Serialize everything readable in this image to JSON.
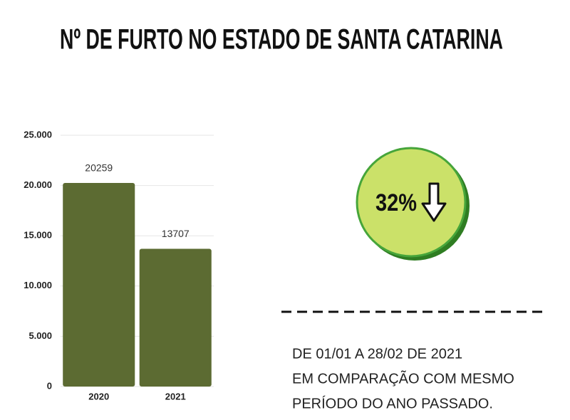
{
  "chart_data": {
    "type": "bar",
    "title": "Nº DE FURTO NO ESTADO DE SANTA CATARINA",
    "categories": [
      "2020",
      "2021"
    ],
    "values": [
      20259,
      13707
    ],
    "color": "#5c6b32",
    "ylim": [
      0,
      25000
    ],
    "yticks": [
      0,
      {
        "value": 5000,
        "label": "5.000"
      },
      {
        "value": 10000,
        "label": "10.000"
      },
      {
        "value": 15000,
        "label": "15.000"
      },
      {
        "value": 20000,
        "label": "20.000"
      },
      {
        "value": 25000,
        "label": "25.000"
      }
    ],
    "grid": true
  },
  "badge": "32%",
  "note": [
    "DE 01/01 A 28/02 DE  2021",
    "EM  COMPARAÇÃO COM MESMO",
    "PERÍODO DO ANO PASSADO."
  ]
}
